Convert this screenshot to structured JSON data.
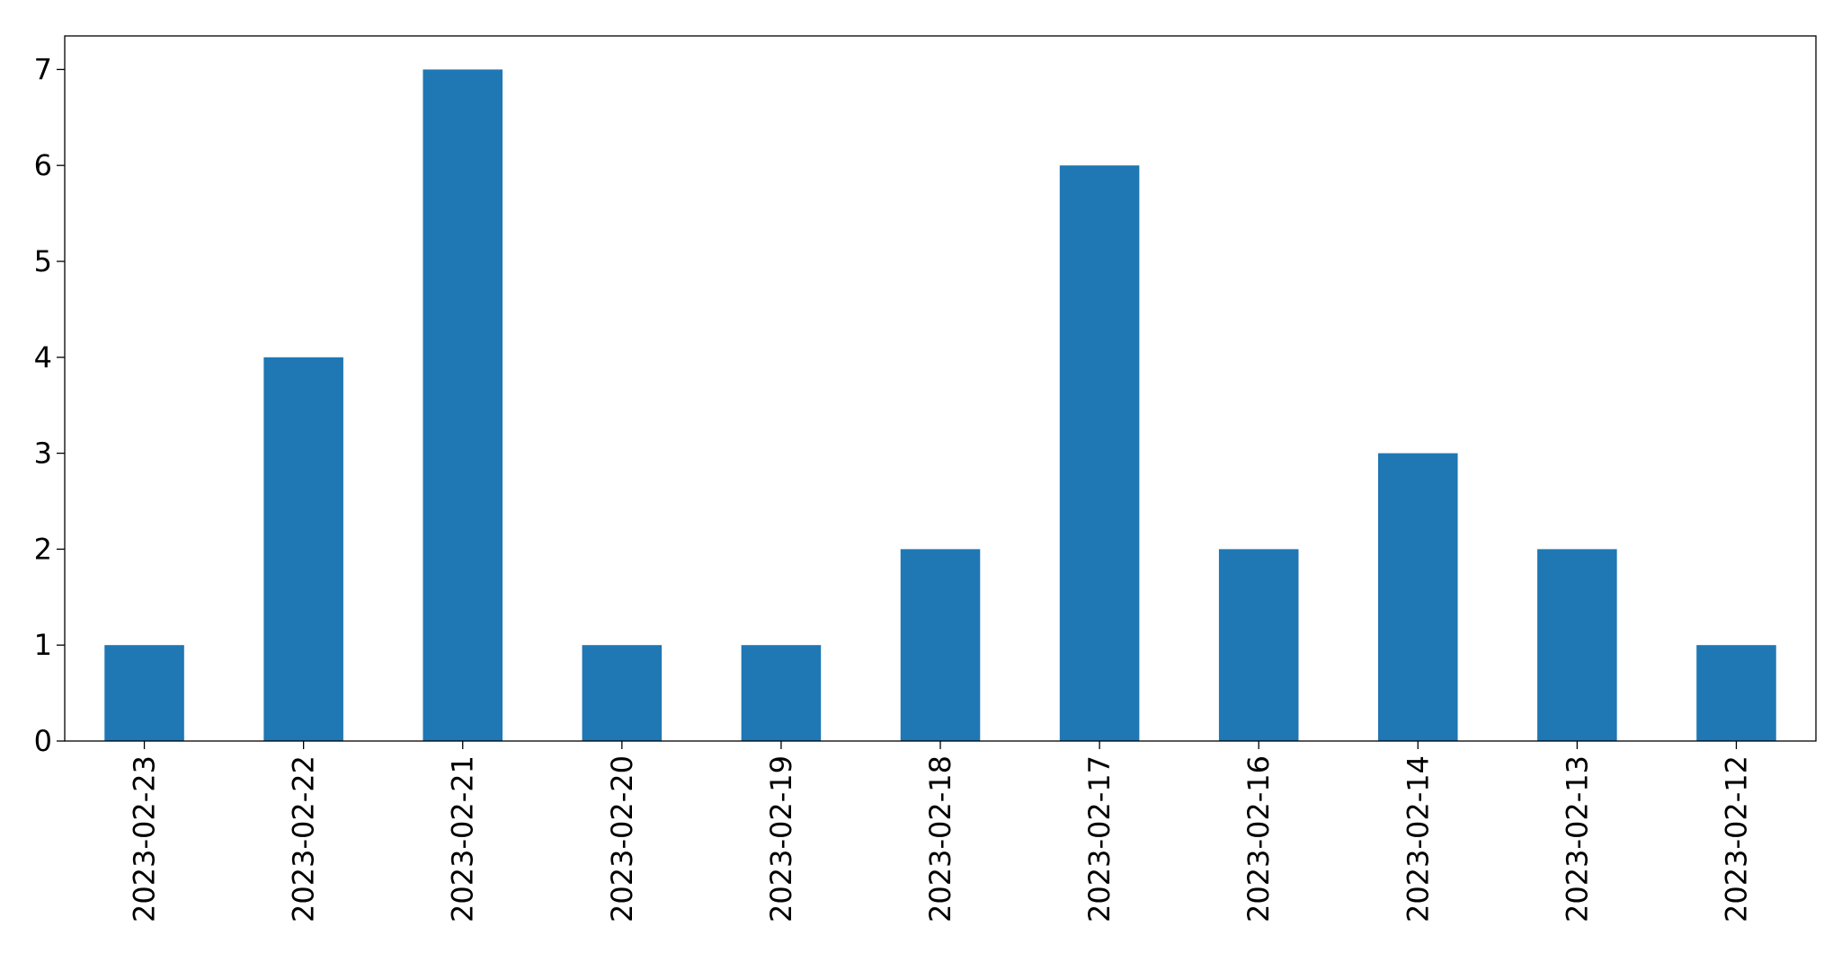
{
  "chart_data": {
    "type": "bar",
    "categories": [
      "2023-02-23",
      "2023-02-22",
      "2023-02-21",
      "2023-02-20",
      "2023-02-19",
      "2023-02-18",
      "2023-02-17",
      "2023-02-16",
      "2023-02-14",
      "2023-02-13",
      "2023-02-12"
    ],
    "values": [
      1,
      4,
      7,
      1,
      1,
      2,
      6,
      2,
      3,
      2,
      1
    ],
    "color": "#1f77b4",
    "ylim": [
      0,
      7.35
    ],
    "yticks": [
      0,
      1,
      2,
      3,
      4,
      5,
      6,
      7
    ],
    "grid": false
  }
}
